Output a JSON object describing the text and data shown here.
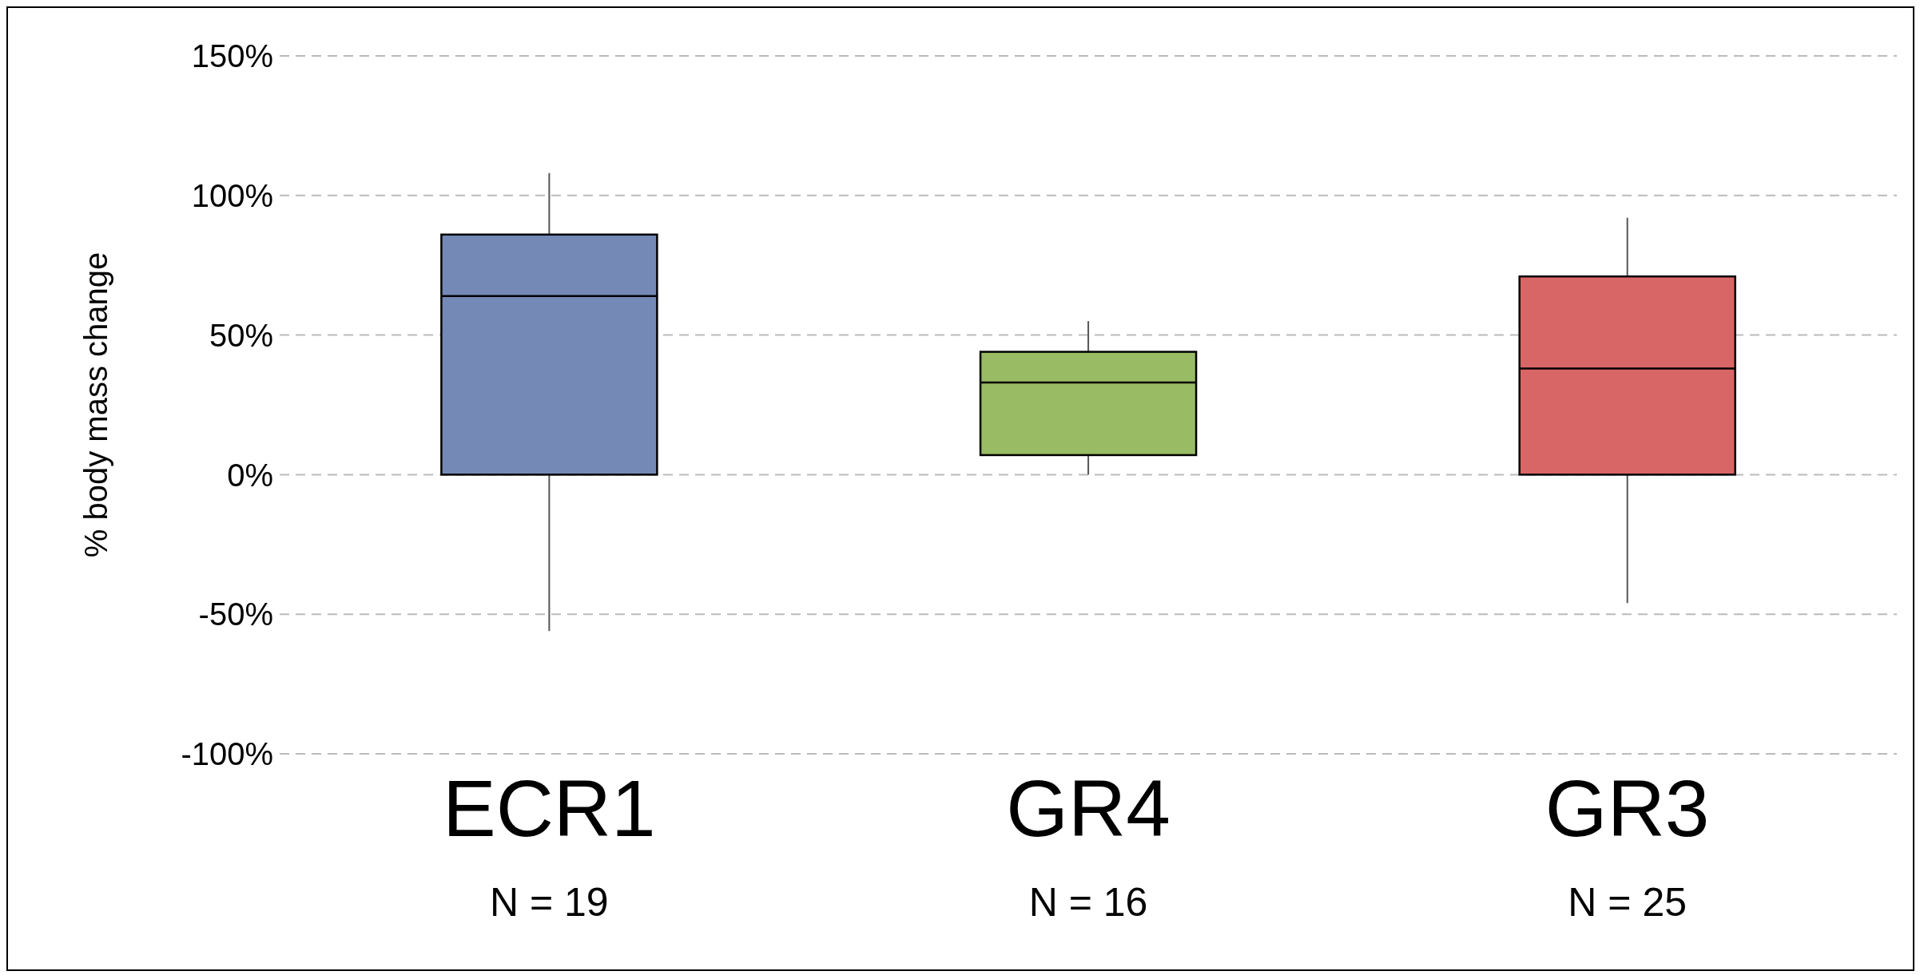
{
  "chart_data": {
    "type": "box",
    "ylabel": "% body mass change",
    "categories": [
      "ECR1",
      "GR4",
      "GR3"
    ],
    "boxes": [
      {
        "low": -56,
        "q1": 0,
        "median": 64,
        "q3": 86,
        "high": 108
      },
      {
        "low": 0,
        "q1": 7,
        "median": 33,
        "q3": 44,
        "high": 55
      },
      {
        "low": -46,
        "q1": 0,
        "median": 38,
        "q3": 71,
        "high": 92
      }
    ],
    "colors": [
      "#7489b6",
      "#98bb64",
      "#d96666"
    ],
    "ylim": [
      -100,
      150
    ],
    "yticks": [
      {
        "value": -100,
        "label": "-100%"
      },
      {
        "value": -50,
        "label": "-50%"
      },
      {
        "value": 0,
        "label": "0%"
      },
      {
        "value": 50,
        "label": "50%"
      },
      {
        "value": 100,
        "label": "100%"
      },
      {
        "value": 150,
        "label": "150%"
      }
    ],
    "grid": "y",
    "annotations": [
      "N = 19",
      "N = 16",
      "N = 25"
    ]
  }
}
